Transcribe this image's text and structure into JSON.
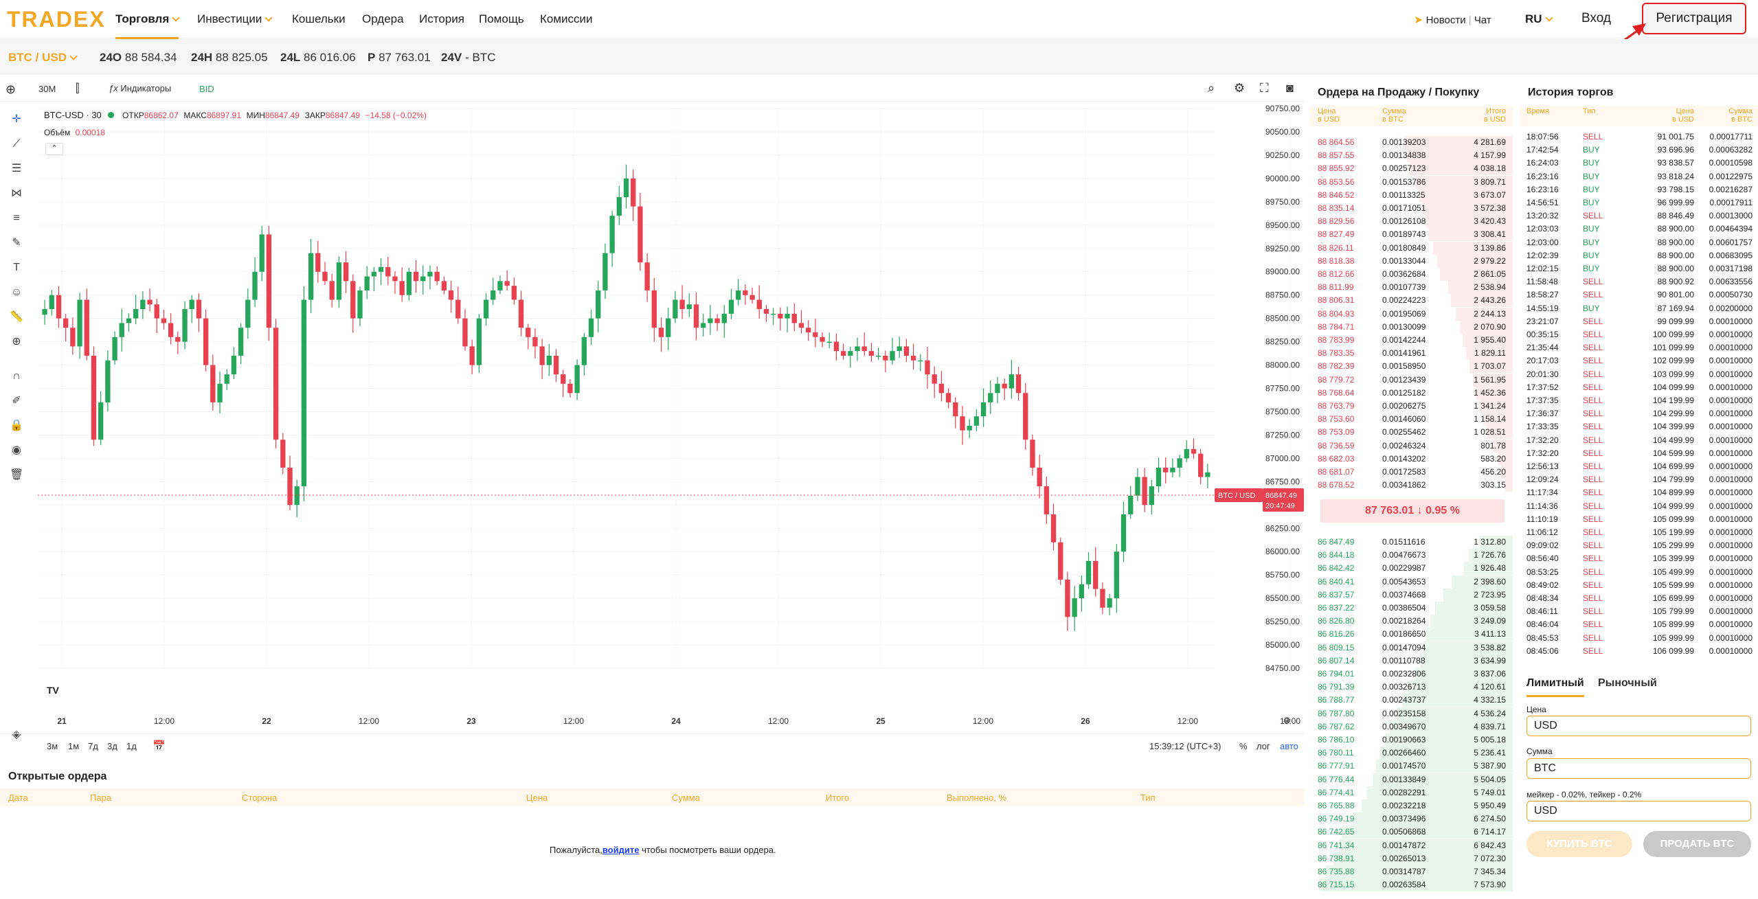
{
  "brand": {
    "logo": "TRADEX",
    "accent": "#f5a623",
    "red": "#e8414f",
    "green": "#26a65b"
  },
  "nav": {
    "items": [
      {
        "label": "Торговля",
        "has_dropdown": true,
        "active": true
      },
      {
        "label": "Инвестиции",
        "has_dropdown": true,
        "active": false
      },
      {
        "label": "Кошельки",
        "has_dropdown": false,
        "active": false
      },
      {
        "label": "Ордера",
        "has_dropdown": false,
        "active": false
      },
      {
        "label": "История",
        "has_dropdown": false,
        "active": false
      },
      {
        "label": "Помощь",
        "has_dropdown": false,
        "active": false
      },
      {
        "label": "Комиссии",
        "has_dropdown": false,
        "active": false
      }
    ],
    "news": "Новости",
    "chat": "Чат",
    "lang": "RU",
    "login": "Вход",
    "register": "Регистрация"
  },
  "ticker": {
    "pair": "BTC / USD",
    "items": [
      {
        "k": "24O",
        "v": "88 584.34"
      },
      {
        "k": "24H",
        "v": "88 825.05"
      },
      {
        "k": "24L",
        "v": "86 016.06"
      },
      {
        "k": "P",
        "v": "87 763.01"
      },
      {
        "k": "24V",
        "v": "- BTC"
      }
    ]
  },
  "chart": {
    "interval": "30M",
    "indicators": "Индикаторы",
    "bid": "BID",
    "legend_title": "BTC-USD · 30",
    "o_label": "ОТКР",
    "o": "86862.07",
    "h_label": "МАКС",
    "h": "86897.91",
    "l_label": "МИН",
    "l": "86847.49",
    "c_label": "ЗАКР",
    "c": "86847.49",
    "change": "−14.58 (−0.02%)",
    "volume_label": "Объём",
    "volume": "0.00018",
    "price_tag": "86847.49",
    "time_tag": "20:47:49",
    "pair_tag": "BTC / USD",
    "ranges": [
      "3м",
      "1м",
      "7д",
      "3д",
      "1д"
    ],
    "clock": "15:39:12 (UTC+3)",
    "pct": "%",
    "log": "лог",
    "auto": "авто"
  },
  "chart_data": {
    "type": "candlestick",
    "x_ticks": [
      "21",
      "12:00",
      "22",
      "12:00",
      "23",
      "12:00",
      "24",
      "12:00",
      "25",
      "12:00",
      "26",
      "12:00",
      "19:00"
    ],
    "y_ticks": [
      "90750.00",
      "90500.00",
      "90250.00",
      "90000.00",
      "89750.00",
      "89500.00",
      "89250.00",
      "89000.00",
      "88750.00",
      "88500.00",
      "88250.00",
      "88000.00",
      "87750.00",
      "87500.00",
      "87250.00",
      "87000.00",
      "86750.00",
      "86500.00",
      "86250.00",
      "86000.00",
      "85750.00",
      "85500.00",
      "85250.00",
      "85000.00",
      "84750.00"
    ],
    "ylim": [
      84750,
      90750
    ],
    "close_path": [
      88600,
      88750,
      88500,
      88400,
      88200,
      88700,
      88100,
      87200,
      87600,
      88050,
      88300,
      88450,
      88500,
      88600,
      88700,
      88650,
      88500,
      88450,
      88300,
      88250,
      88600,
      88700,
      88500,
      88000,
      87600,
      87800,
      87900,
      88100,
      88400,
      88700,
      89000,
      89400,
      88400,
      87200,
      86900,
      86500,
      86700,
      88700,
      89200,
      89000,
      88900,
      88700,
      89100,
      88900,
      88500,
      88800,
      88950,
      89000,
      89050,
      88950,
      88900,
      88750,
      89000,
      88900,
      88950,
      89000,
      88900,
      88800,
      88700,
      88500,
      88200,
      88000,
      88500,
      88700,
      88800,
      88900,
      88850,
      88700,
      88400,
      88300,
      88200,
      88000,
      88100,
      87900,
      87800,
      87700,
      88000,
      88300,
      88500,
      88800,
      89200,
      89600,
      89800,
      90000,
      89700,
      89100,
      88800,
      88400,
      88300,
      88500,
      88700,
      88600,
      88650,
      88400,
      88450,
      88500,
      88450,
      88550,
      88700,
      88800,
      88750,
      88700,
      88600,
      88550,
      88550,
      88500,
      88550,
      88450,
      88400,
      88350,
      88300,
      88250,
      88250,
      88150,
      88100,
      88150,
      88200,
      88150,
      88100,
      88100,
      88050,
      88150,
      88200,
      88100,
      88050,
      88050,
      87900,
      87800,
      87700,
      87600,
      87450,
      87300,
      87350,
      87450,
      87600,
      87700,
      87800,
      87750,
      87900,
      87700,
      87200,
      86900,
      86700,
      86400,
      86100,
      85700,
      85300,
      85500,
      85650,
      85900,
      85600,
      85400,
      85500,
      86000,
      86400,
      86600,
      86800,
      86500,
      86700,
      86900,
      86850,
      86900,
      87000,
      87100,
      87050,
      86800,
      86850
    ]
  },
  "orderbook": {
    "title": "Ордера на Продажу / Покупку",
    "cols": {
      "price": "Цена",
      "price_unit": "в USD",
      "amount": "Сумма",
      "amount_unit": "в BTC",
      "total": "Итого",
      "total_unit": "в USD"
    },
    "asks": [
      [
        "88 864.56",
        "0.00139203",
        "4 281.69"
      ],
      [
        "88 857.55",
        "0.00134838",
        "4 157.99"
      ],
      [
        "88 855.92",
        "0.00257123",
        "4 038.18"
      ],
      [
        "88 853.56",
        "0.00153786",
        "3 809.71"
      ],
      [
        "88 846.52",
        "0.00113325",
        "3 673.07"
      ],
      [
        "88 835.14",
        "0.00171051",
        "3 572.38"
      ],
      [
        "88 829.56",
        "0.00126108",
        "3 420.43"
      ],
      [
        "88 827.49",
        "0.00189743",
        "3 308.41"
      ],
      [
        "88 826.11",
        "0.00180849",
        "3 139.86"
      ],
      [
        "88 818.38",
        "0.00133044",
        "2 979.22"
      ],
      [
        "88 812.66",
        "0.00362684",
        "2 861.05"
      ],
      [
        "88 811.99",
        "0.00107739",
        "2 538.94"
      ],
      [
        "88 806.31",
        "0.00224223",
        "2 443.26"
      ],
      [
        "88 804.93",
        "0.00195069",
        "2 244.13"
      ],
      [
        "88 784.71",
        "0.00130099",
        "2 070.90"
      ],
      [
        "88 783.99",
        "0.00142244",
        "1 955.40"
      ],
      [
        "88 783.35",
        "0.00141961",
        "1 829.11"
      ],
      [
        "88 782.39",
        "0.00158950",
        "1 703.07"
      ],
      [
        "88 779.72",
        "0.00123439",
        "1 561.95"
      ],
      [
        "88 768.64",
        "0.00125182",
        "1 452.36"
      ],
      [
        "88 763.79",
        "0.00206275",
        "1 341.24"
      ],
      [
        "88 753.60",
        "0.00146060",
        "1 158.14"
      ],
      [
        "88 753.09",
        "0.00255462",
        "1 028.51"
      ],
      [
        "88 736.59",
        "0.00246324",
        "801.78"
      ],
      [
        "88 682.03",
        "0.00143202",
        "583.20"
      ],
      [
        "88 681.07",
        "0.00172583",
        "456.20"
      ],
      [
        "88 678.52",
        "0.00341862",
        "303.15"
      ]
    ],
    "mid_price": "87 763.01",
    "mid_arrow": "↓",
    "mid_change": "0.95 %",
    "bids": [
      [
        "86 847.49",
        "0.01511616",
        "1 312.80"
      ],
      [
        "86 844.18",
        "0.00476673",
        "1 726.76"
      ],
      [
        "86 842.42",
        "0.00229987",
        "1 926.48"
      ],
      [
        "86 840.41",
        "0.00543653",
        "2 398.60"
      ],
      [
        "86 837.57",
        "0.00374668",
        "2 723.95"
      ],
      [
        "86 837.22",
        "0.00386504",
        "3 059.58"
      ],
      [
        "86 826.80",
        "0.00218264",
        "3 249.09"
      ],
      [
        "86 816.26",
        "0.00186650",
        "3 411.13"
      ],
      [
        "86 809.15",
        "0.00147094",
        "3 538.82"
      ],
      [
        "86 807.14",
        "0.00110788",
        "3 634.99"
      ],
      [
        "86 794.01",
        "0.00232806",
        "3 837.06"
      ],
      [
        "86 791.39",
        "0.00326713",
        "4 120.61"
      ],
      [
        "86 788.77",
        "0.00243737",
        "4 332.15"
      ],
      [
        "86 787.80",
        "0.00235158",
        "4 536.24"
      ],
      [
        "86 787.62",
        "0.00349670",
        "4 839.71"
      ],
      [
        "86 786.10",
        "0.00190663",
        "5 005.18"
      ],
      [
        "86 780.11",
        "0.00266460",
        "5 236.41"
      ],
      [
        "86 777.91",
        "0.00174570",
        "5 387.90"
      ],
      [
        "86 776.44",
        "0.00133849",
        "5 504.05"
      ],
      [
        "86 774.41",
        "0.00282291",
        "5 749.01"
      ],
      [
        "86 765.88",
        "0.00232218",
        "5 950.49"
      ],
      [
        "86 749.19",
        "0.00373496",
        "6 274.50"
      ],
      [
        "86 742.65",
        "0.00506868",
        "6 714.17"
      ],
      [
        "86 741.34",
        "0.00147872",
        "6 842.43"
      ],
      [
        "86 738.91",
        "0.00265013",
        "7 072.30"
      ],
      [
        "86 735.88",
        "0.00314787",
        "7 345.34"
      ],
      [
        "86 715.15",
        "0.00263584",
        "7 573.90"
      ]
    ]
  },
  "history": {
    "title": "История торгов",
    "cols": {
      "time": "Время",
      "type": "Тип",
      "price": "Цена",
      "price_unit": "в USD",
      "amount": "Сумма",
      "amount_unit": "в BTC"
    },
    "rows": [
      [
        "18:07:56",
        "SELL",
        "91 001.75",
        "0.00017711"
      ],
      [
        "17:42:54",
        "BUY",
        "93 696.96",
        "0.00063282"
      ],
      [
        "16:24:03",
        "BUY",
        "93 838.57",
        "0.00010598"
      ],
      [
        "16:23:16",
        "BUY",
        "93 818.24",
        "0.00122975"
      ],
      [
        "16:23:16",
        "BUY",
        "93 798.15",
        "0.00216287"
      ],
      [
        "14:56:51",
        "BUY",
        "96 999.99",
        "0.00017911"
      ],
      [
        "13:20:32",
        "SELL",
        "88 846.49",
        "0.00013000"
      ],
      [
        "12:03:03",
        "BUY",
        "88 900.00",
        "0.00464394"
      ],
      [
        "12:03:00",
        "BUY",
        "88 900.00",
        "0.00601757"
      ],
      [
        "12:02:39",
        "BUY",
        "88 900.00",
        "0.00683095"
      ],
      [
        "12:02:15",
        "BUY",
        "88 900.00",
        "0.00317198"
      ],
      [
        "11:58:48",
        "SELL",
        "88 900.92",
        "0.00633556"
      ],
      [
        "18:58:27",
        "SELL",
        "90 801.00",
        "0.00050730"
      ],
      [
        "14:55:19",
        "BUY",
        "87 169.94",
        "0.00200000"
      ],
      [
        "23:21:07",
        "SELL",
        "99 099.99",
        "0.00010000"
      ],
      [
        "00:35:15",
        "SELL",
        "100 099.99",
        "0.00010000"
      ],
      [
        "21:35:44",
        "SELL",
        "101 099.99",
        "0.00010000"
      ],
      [
        "20:17:03",
        "SELL",
        "102 099.99",
        "0.00010000"
      ],
      [
        "20:01:30",
        "SELL",
        "103 099.99",
        "0.00010000"
      ],
      [
        "17:37:52",
        "SELL",
        "104 099.99",
        "0.00010000"
      ],
      [
        "17:37:35",
        "SELL",
        "104 199.99",
        "0.00010000"
      ],
      [
        "17:36:37",
        "SELL",
        "104 299.99",
        "0.00010000"
      ],
      [
        "17:33:35",
        "SELL",
        "104 399.99",
        "0.00010000"
      ],
      [
        "17:32:20",
        "SELL",
        "104 499.99",
        "0.00010000"
      ],
      [
        "17:32:20",
        "SELL",
        "104 599.99",
        "0.00010000"
      ],
      [
        "12:56:13",
        "SELL",
        "104 699.99",
        "0.00010000"
      ],
      [
        "12:09:24",
        "SELL",
        "104 799.99",
        "0.00010000"
      ],
      [
        "11:17:34",
        "SELL",
        "104 899.99",
        "0.00010000"
      ],
      [
        "11:14:36",
        "SELL",
        "104 999.99",
        "0.00010000"
      ],
      [
        "11:10:19",
        "SELL",
        "105 099.99",
        "0.00010000"
      ],
      [
        "11:06:12",
        "SELL",
        "105 199.99",
        "0.00010000"
      ],
      [
        "09:09:02",
        "SELL",
        "105 299.99",
        "0.00010000"
      ],
      [
        "08:56:40",
        "SELL",
        "105 399.99",
        "0.00010000"
      ],
      [
        "08:53:25",
        "SELL",
        "105 499.99",
        "0.00010000"
      ],
      [
        "08:49:02",
        "SELL",
        "105 599.99",
        "0.00010000"
      ],
      [
        "08:48:34",
        "SELL",
        "105 699.99",
        "0.00010000"
      ],
      [
        "08:46:11",
        "SELL",
        "105 799.99",
        "0.00010000"
      ],
      [
        "08:46:04",
        "SELL",
        "105 899.99",
        "0.00010000"
      ],
      [
        "08:45:53",
        "SELL",
        "105 999.99",
        "0.00010000"
      ],
      [
        "08:45:06",
        "SELL",
        "106 099.99",
        "0.00010000"
      ]
    ]
  },
  "tradeform": {
    "tab_limit": "Лимитный",
    "tab_market": "Рыночный",
    "price_label": "Цена",
    "price_value": "USD",
    "amount_label": "Сумма",
    "amount_value": "BTC",
    "fee_note": "мейкер - 0.02%, тейкер - 0.2%",
    "total_value": "USD",
    "buy": "КУПИТЬ BTC",
    "sell": "ПРОДАТЬ BTC"
  },
  "orders": {
    "title": "Открытые ордера",
    "cols": [
      "Дата",
      "Пара",
      "Сторона",
      "Цена",
      "Сумма",
      "Итого",
      "Выполнено, %",
      "Тип"
    ],
    "empty_prefix": "Пожалуйста,",
    "empty_link": "войдите",
    "empty_suffix": "чтобы посмотреть ваши ордера."
  }
}
